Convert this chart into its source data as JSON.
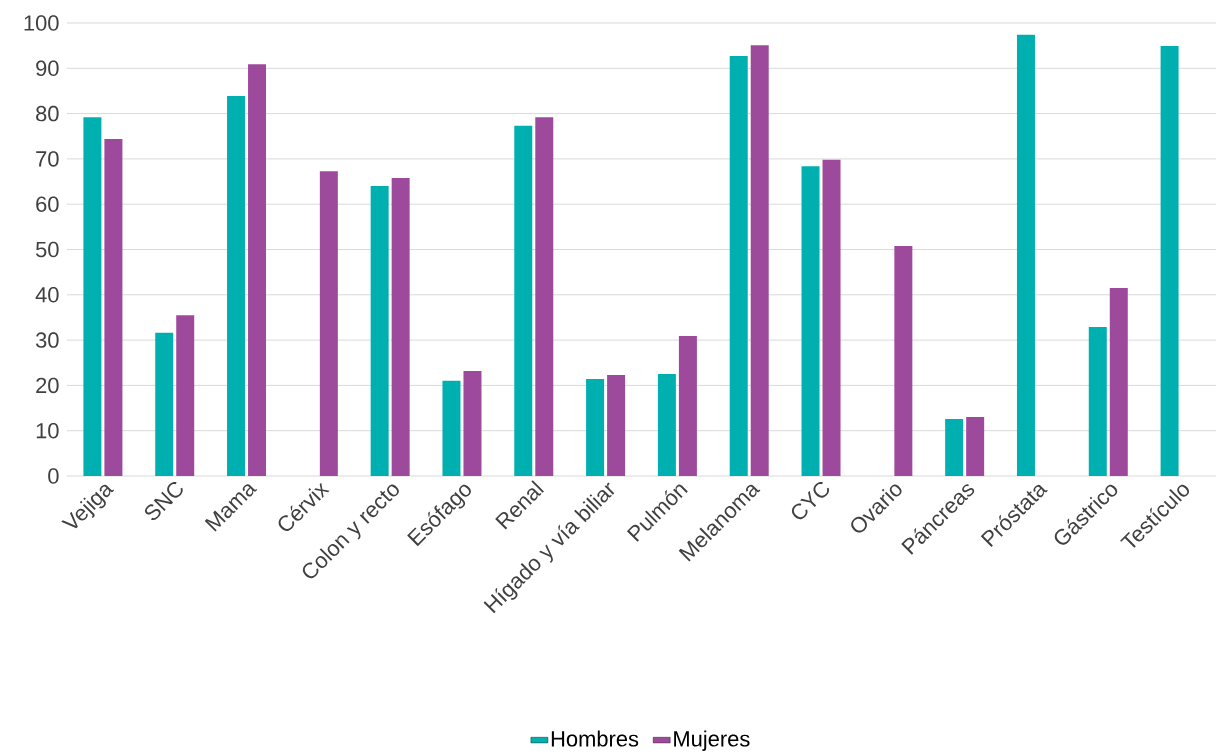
{
  "chart_data": {
    "type": "bar",
    "categories": [
      "Vejiga",
      "SNC",
      "Mama",
      "Cérvix",
      "Colon y recto",
      "Esófago",
      "Renal",
      "Hígado y vía biliar",
      "Pulmón",
      "Melanoma",
      "CYC",
      "Ovario",
      "Páncreas",
      "Próstata",
      "Gástrico",
      "Testículo"
    ],
    "series": [
      {
        "name": "Hombres",
        "color": "#00b0b0",
        "values": [
          79.2,
          31.6,
          83.9,
          null,
          64.0,
          21.0,
          77.3,
          21.4,
          22.5,
          92.7,
          68.4,
          null,
          12.6,
          97.4,
          32.9,
          94.9
        ]
      },
      {
        "name": "Mujeres",
        "color": "#9e4a9c",
        "values": [
          74.4,
          35.5,
          90.9,
          67.3,
          65.8,
          23.2,
          79.2,
          22.3,
          30.9,
          95.1,
          69.8,
          50.8,
          13.0,
          null,
          41.5,
          null
        ]
      }
    ],
    "ylim": [
      0,
      100
    ],
    "yticks": [
      0,
      10,
      20,
      30,
      40,
      50,
      60,
      70,
      80,
      90,
      100
    ],
    "grid": "y",
    "legend": "bottom"
  }
}
